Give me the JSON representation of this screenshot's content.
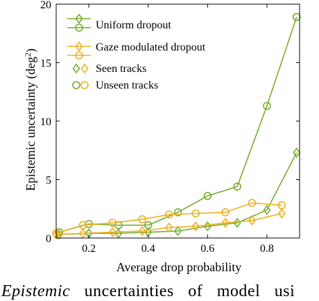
{
  "chart_data": {
    "type": "line",
    "title": "",
    "xlabel": "Average drop probability",
    "ylabel": "Epistemic uncertainty (deg",
    "ylabel_sup": "2",
    "ylabel_close": ")",
    "xlim": [
      0.09,
      0.91
    ],
    "ylim": [
      0,
      20
    ],
    "xticks": [
      0.2,
      0.4,
      0.6,
      0.8
    ],
    "xtick_labels": [
      "0.2",
      "0.4",
      "0.6",
      "0.8"
    ],
    "yticks": [
      0,
      5,
      10,
      15,
      20
    ],
    "ytick_labels": [
      "0",
      "5",
      "10",
      "15",
      "20"
    ],
    "grid": false,
    "legend_position": "top-left",
    "colors": {
      "uniform": "#77ac30",
      "gaze": "#edb120"
    },
    "series": [
      {
        "name": "Uniform dropout",
        "key": "uniform",
        "marker": "diamond",
        "x": [
          0.1,
          0.2,
          0.3,
          0.4,
          0.5,
          0.6,
          0.7,
          0.8,
          0.9
        ],
        "values": [
          0.3,
          0.4,
          0.4,
          0.5,
          0.6,
          1.0,
          1.3,
          2.4,
          7.3
        ]
      },
      {
        "name": "Uniform dropout",
        "key": "uniform",
        "marker": "circle",
        "x": [
          0.1,
          0.2,
          0.3,
          0.4,
          0.5,
          0.6,
          0.7,
          0.8,
          0.9
        ],
        "values": [
          0.5,
          1.2,
          1.1,
          1.1,
          2.2,
          3.6,
          4.4,
          11.3,
          18.9
        ]
      },
      {
        "name": "Gaze modulated dropout",
        "key": "gaze",
        "marker": "diamond",
        "x": [
          0.09,
          0.18,
          0.28,
          0.38,
          0.47,
          0.56,
          0.66,
          0.75,
          0.85
        ],
        "values": [
          0.3,
          0.4,
          0.5,
          0.6,
          0.9,
          1.0,
          1.3,
          1.5,
          2.1
        ]
      },
      {
        "name": "Gaze modulated dropout",
        "key": "gaze",
        "marker": "circle",
        "x": [
          0.09,
          0.18,
          0.28,
          0.38,
          0.47,
          0.56,
          0.66,
          0.75,
          0.85
        ],
        "values": [
          0.4,
          1.1,
          1.3,
          1.6,
          2.0,
          2.1,
          2.2,
          3.0,
          2.8
        ]
      }
    ],
    "legend": [
      {
        "label": "Uniform dropout",
        "style": "line-diamond",
        "color_key": "uniform"
      },
      {
        "label": "",
        "style": "line-circle",
        "color_key": "uniform"
      },
      {
        "label": "Gaze modulated dropout",
        "style": "line-diamond",
        "color_key": "gaze"
      },
      {
        "label": "",
        "style": "line-circle",
        "color_key": "gaze"
      },
      {
        "label": "Seen tracks",
        "style": "diamond-pair"
      },
      {
        "label": "Unseen tracks",
        "style": "circle-pair"
      }
    ]
  },
  "caption": {
    "italic": "Epistemic",
    "rest": " uncertainties of model usi"
  }
}
